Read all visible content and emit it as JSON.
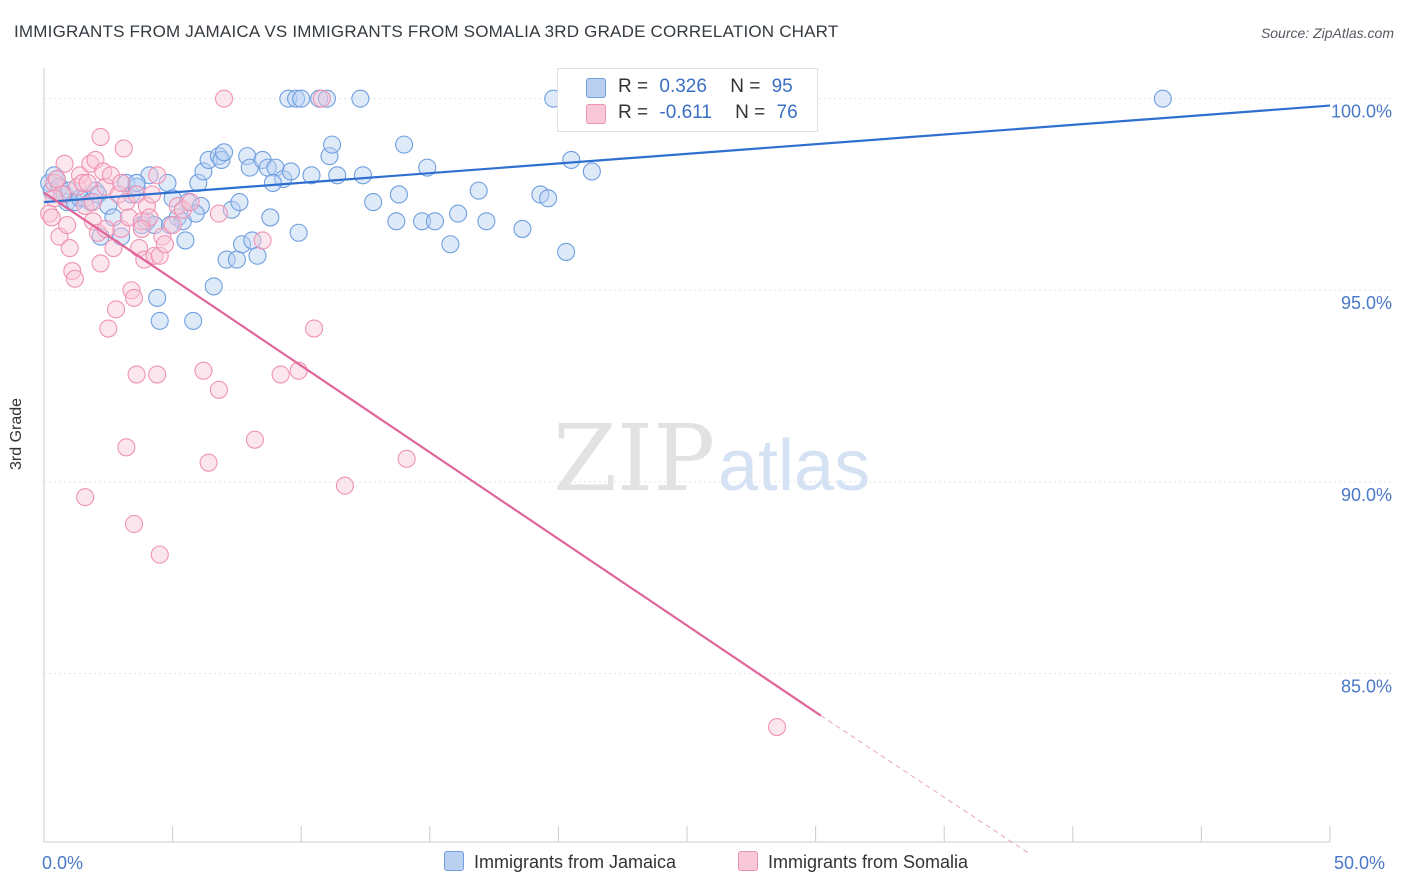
{
  "title": "IMMIGRANTS FROM JAMAICA VS IMMIGRANTS FROM SOMALIA 3RD GRADE CORRELATION CHART",
  "source": "Source: ZipAtlas.com",
  "watermark": {
    "zip": "ZIP",
    "atlas": "atlas"
  },
  "legend": {
    "jamaica": {
      "r_label": "R =",
      "r_value": "0.326",
      "n_label": "N =",
      "n_value": "95"
    },
    "somalia": {
      "r_label": "R =",
      "r_value": "-0.611",
      "n_label": "N =",
      "n_value": "76"
    }
  },
  "colors": {
    "jamaica": "#6f9fe0",
    "jamaica_fill": "#b9d0f1",
    "jamaica_line": "#2f6fd0",
    "somalia": "#ef93b3",
    "somalia_fill": "#f8c8d8",
    "somalia_line": "#e0659a",
    "axis_text": "#4a78c7"
  },
  "chart_data": {
    "type": "scatter",
    "title": "IMMIGRANTS FROM JAMAICA VS IMMIGRANTS FROM SOMALIA 3RD GRADE CORRELATION CHART",
    "xlabel": "",
    "ylabel": "3rd Grade",
    "xlim": [
      0,
      50
    ],
    "ylim": [
      80.6,
      100.8
    ],
    "x_tick_labels": [
      "0.0%",
      "50.0%"
    ],
    "y_ticks": [
      100,
      95,
      90,
      85
    ],
    "y_tick_labels": [
      "100.0%",
      "95.0%",
      "90.0%",
      "85.0%"
    ],
    "grid": true,
    "legend_position": "top-center",
    "series": [
      {
        "name": "Immigrants from Jamaica",
        "r": 0.326,
        "n": 95,
        "trend": {
          "x": [
            0,
            50
          ],
          "y": [
            97.3,
            99.82
          ],
          "dashed_from": null
        },
        "points": [
          [
            0.2,
            97.8
          ],
          [
            0.3,
            97.6
          ],
          [
            0.4,
            98.0
          ],
          [
            0.5,
            97.9
          ],
          [
            0.6,
            97.7
          ],
          [
            0.8,
            97.5
          ],
          [
            0.9,
            97.3
          ],
          [
            1.0,
            97.6
          ],
          [
            1.2,
            97.3
          ],
          [
            1.4,
            97.4
          ],
          [
            1.6,
            97.4
          ],
          [
            1.8,
            97.3
          ],
          [
            2.0,
            97.6
          ],
          [
            2.1,
            97.5
          ],
          [
            2.2,
            96.4
          ],
          [
            2.5,
            97.2
          ],
          [
            2.7,
            96.9
          ],
          [
            3.0,
            96.4
          ],
          [
            3.2,
            97.8
          ],
          [
            3.4,
            97.5
          ],
          [
            3.6,
            97.7
          ],
          [
            3.8,
            96.7
          ],
          [
            4.0,
            96.8
          ],
          [
            4.1,
            98.0
          ],
          [
            4.3,
            96.7
          ],
          [
            4.4,
            94.8
          ],
          [
            4.5,
            94.2
          ],
          [
            4.8,
            97.8
          ],
          [
            5.0,
            97.4
          ],
          [
            5.2,
            96.9
          ],
          [
            5.4,
            96.8
          ],
          [
            5.5,
            96.3
          ],
          [
            5.6,
            97.3
          ],
          [
            5.8,
            94.2
          ],
          [
            6.0,
            97.8
          ],
          [
            6.1,
            97.2
          ],
          [
            6.2,
            98.1
          ],
          [
            6.4,
            98.4
          ],
          [
            6.6,
            95.1
          ],
          [
            6.8,
            98.5
          ],
          [
            6.9,
            98.4
          ],
          [
            7.0,
            98.6
          ],
          [
            7.1,
            95.8
          ],
          [
            7.3,
            97.1
          ],
          [
            7.5,
            95.8
          ],
          [
            7.6,
            97.3
          ],
          [
            7.7,
            96.2
          ],
          [
            7.9,
            98.5
          ],
          [
            8.0,
            98.2
          ],
          [
            8.1,
            96.3
          ],
          [
            8.3,
            95.9
          ],
          [
            8.5,
            98.4
          ],
          [
            8.7,
            98.2
          ],
          [
            8.8,
            96.9
          ],
          [
            9.0,
            98.2
          ],
          [
            9.3,
            97.9
          ],
          [
            9.5,
            100.0
          ],
          [
            9.6,
            98.1
          ],
          [
            9.8,
            100.0
          ],
          [
            9.9,
            96.5
          ],
          [
            10.0,
            100.0
          ],
          [
            10.4,
            98.0
          ],
          [
            10.7,
            100.0
          ],
          [
            11.0,
            100.0
          ],
          [
            11.1,
            98.5
          ],
          [
            11.2,
            98.8
          ],
          [
            11.4,
            98.0
          ],
          [
            12.3,
            100.0
          ],
          [
            12.4,
            98.0
          ],
          [
            12.8,
            97.3
          ],
          [
            13.7,
            96.8
          ],
          [
            13.8,
            97.5
          ],
          [
            14.0,
            98.8
          ],
          [
            14.7,
            96.8
          ],
          [
            14.9,
            98.2
          ],
          [
            15.2,
            96.8
          ],
          [
            15.8,
            96.2
          ],
          [
            16.1,
            97.0
          ],
          [
            16.9,
            97.6
          ],
          [
            17.2,
            96.8
          ],
          [
            18.6,
            96.6
          ],
          [
            19.3,
            97.5
          ],
          [
            19.6,
            97.4
          ],
          [
            19.8,
            100.0
          ],
          [
            20.3,
            96.0
          ],
          [
            20.5,
            98.4
          ],
          [
            21.0,
            100.0
          ],
          [
            21.3,
            98.1
          ],
          [
            27.0,
            99.4
          ],
          [
            27.3,
            100.0
          ],
          [
            43.5,
            100.0
          ],
          [
            3.6,
            97.8
          ],
          [
            4.9,
            96.7
          ],
          [
            5.9,
            97.0
          ],
          [
            8.9,
            97.8
          ]
        ]
      },
      {
        "name": "Immigrants from Somalia",
        "r": -0.611,
        "n": 76,
        "trend": {
          "x": [
            0,
            30.2,
            38.3
          ],
          "y": [
            97.55,
            83.9,
            80.3
          ],
          "dashed_from": 30.2
        },
        "points": [
          [
            0.2,
            97.0
          ],
          [
            0.3,
            96.9
          ],
          [
            0.4,
            97.8
          ],
          [
            0.5,
            97.9
          ],
          [
            0.6,
            96.4
          ],
          [
            0.7,
            97.5
          ],
          [
            0.8,
            98.3
          ],
          [
            0.9,
            96.7
          ],
          [
            1.0,
            96.1
          ],
          [
            1.1,
            95.5
          ],
          [
            1.2,
            95.3
          ],
          [
            1.3,
            97.7
          ],
          [
            1.4,
            98.0
          ],
          [
            1.5,
            97.8
          ],
          [
            1.6,
            97.2
          ],
          [
            1.7,
            97.8
          ],
          [
            1.8,
            98.3
          ],
          [
            1.9,
            96.8
          ],
          [
            2.0,
            98.4
          ],
          [
            2.1,
            96.5
          ],
          [
            2.2,
            99.0
          ],
          [
            2.3,
            98.1
          ],
          [
            2.4,
            97.7
          ],
          [
            2.5,
            94.0
          ],
          [
            2.6,
            98.0
          ],
          [
            2.7,
            96.1
          ],
          [
            2.8,
            94.5
          ],
          [
            2.9,
            97.5
          ],
          [
            3.0,
            96.6
          ],
          [
            3.1,
            98.7
          ],
          [
            3.2,
            97.3
          ],
          [
            3.3,
            96.9
          ],
          [
            3.4,
            95.0
          ],
          [
            3.5,
            94.8
          ],
          [
            3.6,
            97.5
          ],
          [
            3.7,
            96.1
          ],
          [
            3.8,
            96.8
          ],
          [
            3.9,
            95.8
          ],
          [
            4.0,
            97.2
          ],
          [
            4.1,
            96.9
          ],
          [
            4.2,
            97.5
          ],
          [
            4.3,
            95.9
          ],
          [
            4.4,
            98.0
          ],
          [
            4.5,
            95.9
          ],
          [
            4.6,
            96.4
          ],
          [
            4.7,
            96.2
          ],
          [
            5.0,
            96.7
          ],
          [
            5.2,
            97.2
          ],
          [
            5.4,
            97.1
          ],
          [
            5.7,
            97.3
          ],
          [
            6.2,
            92.9
          ],
          [
            6.4,
            90.5
          ],
          [
            6.8,
            92.4
          ],
          [
            7.0,
            100.0
          ],
          [
            8.2,
            91.1
          ],
          [
            8.5,
            96.3
          ],
          [
            9.2,
            92.8
          ],
          [
            9.9,
            92.9
          ],
          [
            10.5,
            94.0
          ],
          [
            10.8,
            100.0
          ],
          [
            11.7,
            89.9
          ],
          [
            14.1,
            90.6
          ],
          [
            1.6,
            89.6
          ],
          [
            3.2,
            90.9
          ],
          [
            3.5,
            88.9
          ],
          [
            3.6,
            92.8
          ],
          [
            4.4,
            92.8
          ],
          [
            4.5,
            88.1
          ],
          [
            28.5,
            83.6
          ],
          [
            0.4,
            97.4
          ],
          [
            1.9,
            97.3
          ],
          [
            2.4,
            96.6
          ],
          [
            3.0,
            97.8
          ],
          [
            6.8,
            97.0
          ],
          [
            2.2,
            95.7
          ],
          [
            3.8,
            96.6
          ]
        ]
      }
    ]
  }
}
